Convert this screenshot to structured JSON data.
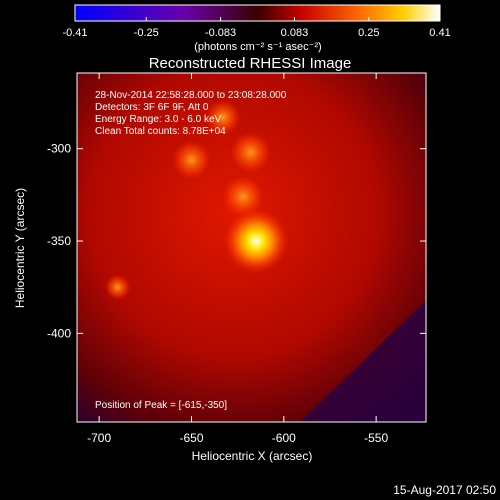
{
  "colorbar": {
    "ticks": [
      -0.41,
      -0.25,
      -0.083,
      0.083,
      0.25,
      0.41
    ],
    "tick_labels": [
      "-0.41",
      "-0.25",
      "-0.083",
      "0.083",
      "0.25",
      "0.41"
    ],
    "unit_label": "(photons cm⁻² s⁻¹ asec⁻²)",
    "range": [
      -0.41,
      0.41
    ]
  },
  "image_info": {
    "title": "Reconstructed RHESSI Image",
    "lines": [
      "28-Nov-2014 22:58:28.000 to 23:08:28.000",
      "Detectors: 3F 6F 9F, Att 0",
      "Energy Range: 3.0 - 6.0 keV",
      "Clean     Total counts: 8.78E+04"
    ],
    "peak_label": "Position of Peak = [-615,-350]"
  },
  "timestamp": "15-Aug-2017 02:50",
  "chart_data": {
    "type": "heatmap",
    "title": "Reconstructed RHESSI Image",
    "xlabel": "Heliocentric X (arcsec)",
    "ylabel": "Heliocentric Y (arcsec)",
    "xlim": [
      -712,
      -523
    ],
    "ylim": [
      -448,
      -259
    ],
    "x_ticks": [
      -700,
      -650,
      -600,
      -550
    ],
    "x_tick_labels": [
      "-700",
      "-650",
      "-600",
      "-550"
    ],
    "y_ticks": [
      -300,
      -350,
      -400
    ],
    "y_tick_labels": [
      "-300",
      "-350",
      "-400"
    ],
    "peak": {
      "x": -615,
      "y": -350
    },
    "sources": [
      {
        "x": -615,
        "y": -350,
        "value": 0.41
      },
      {
        "x": -622,
        "y": -326,
        "value": 0.2
      },
      {
        "x": -618,
        "y": -302,
        "value": 0.19
      },
      {
        "x": -650,
        "y": -306,
        "value": 0.17
      },
      {
        "x": -633,
        "y": -283,
        "value": 0.14
      },
      {
        "x": -690,
        "y": -375,
        "value": 0.05
      }
    ]
  }
}
